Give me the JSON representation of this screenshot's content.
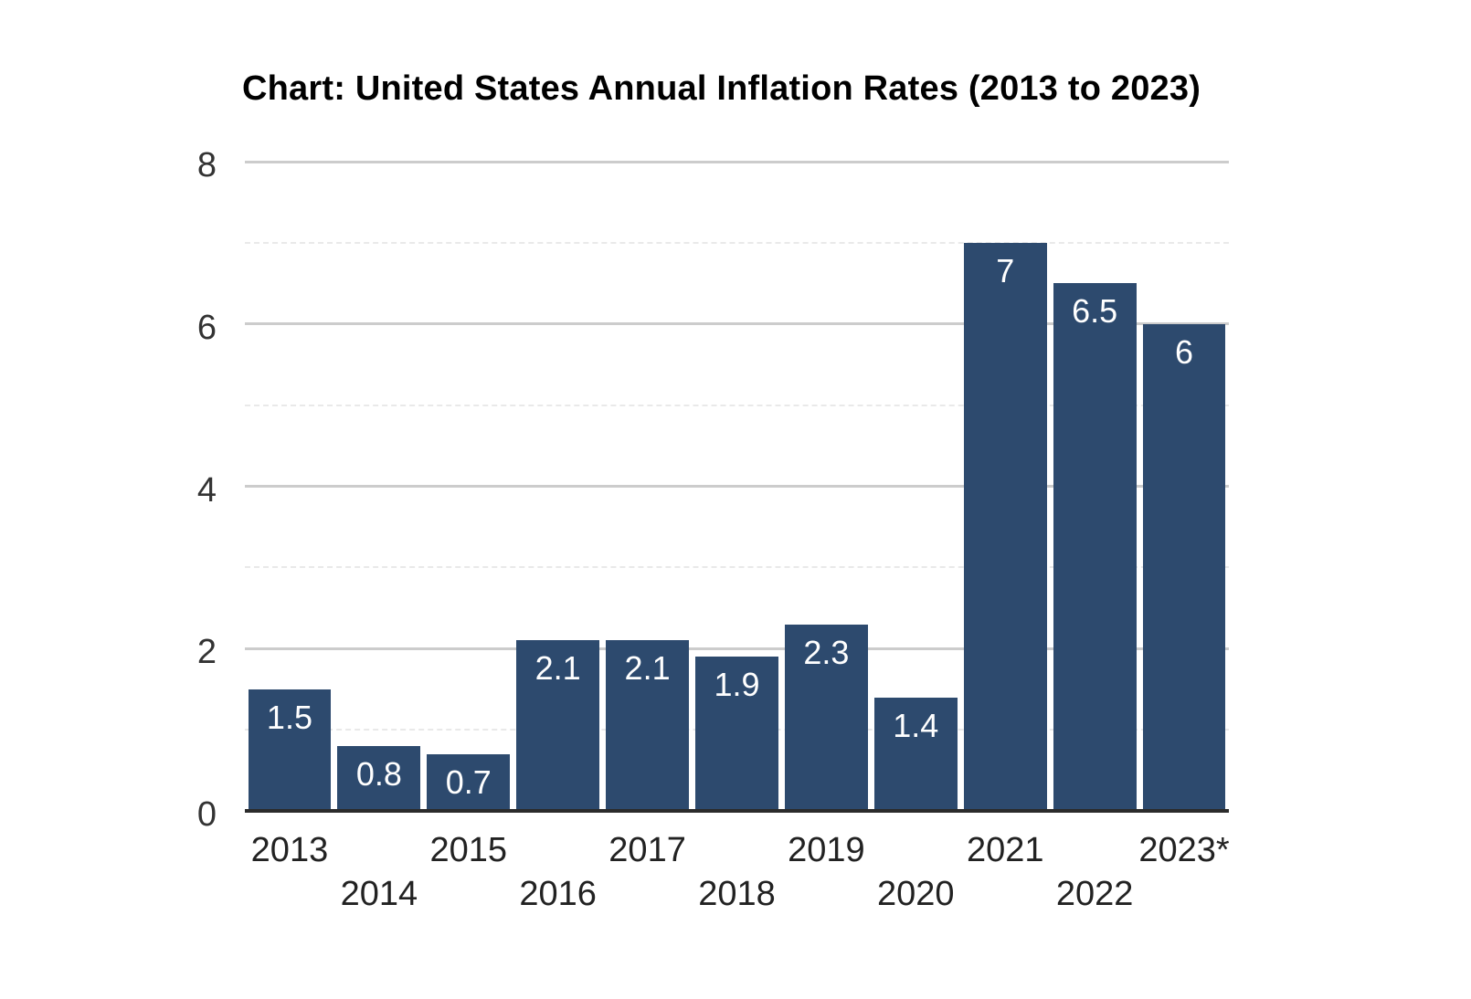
{
  "title": "Chart: United States Annual Inflation Rates (2013 to 2023)",
  "colors": {
    "bar": "#2d4a6e",
    "value_label": "#ffffff",
    "major_gridline": "#cccccc",
    "minor_gridline": "#e9e9e9",
    "baseline": "#2b2b2b",
    "axis_text": "#333333",
    "title_text": "#000000"
  },
  "chart_data": {
    "type": "bar",
    "title": "Chart: United States Annual Inflation Rates (2013 to 2023)",
    "categories": [
      "2013",
      "2014",
      "2015",
      "2016",
      "2017",
      "2018",
      "2019",
      "2020",
      "2021",
      "2022",
      "2023*"
    ],
    "values": [
      1.5,
      0.8,
      0.7,
      2.1,
      2.1,
      1.9,
      2.3,
      1.4,
      7,
      6.5,
      6
    ],
    "bar_labels": [
      "1.5",
      "0.8",
      "0.7",
      "2.1",
      "2.1",
      "1.9",
      "2.3",
      "1.4",
      "7",
      "6.5",
      "6"
    ],
    "xlabel": "",
    "ylabel": "",
    "ylim": [
      0,
      8
    ],
    "yticks": [
      0,
      2,
      4,
      6,
      8
    ],
    "minor_yticks": [
      1,
      3,
      5,
      7
    ],
    "grid": "horizontal-major-and-dashed-minor",
    "legend": "none",
    "x_label_layout": "staggered-two-rows"
  }
}
